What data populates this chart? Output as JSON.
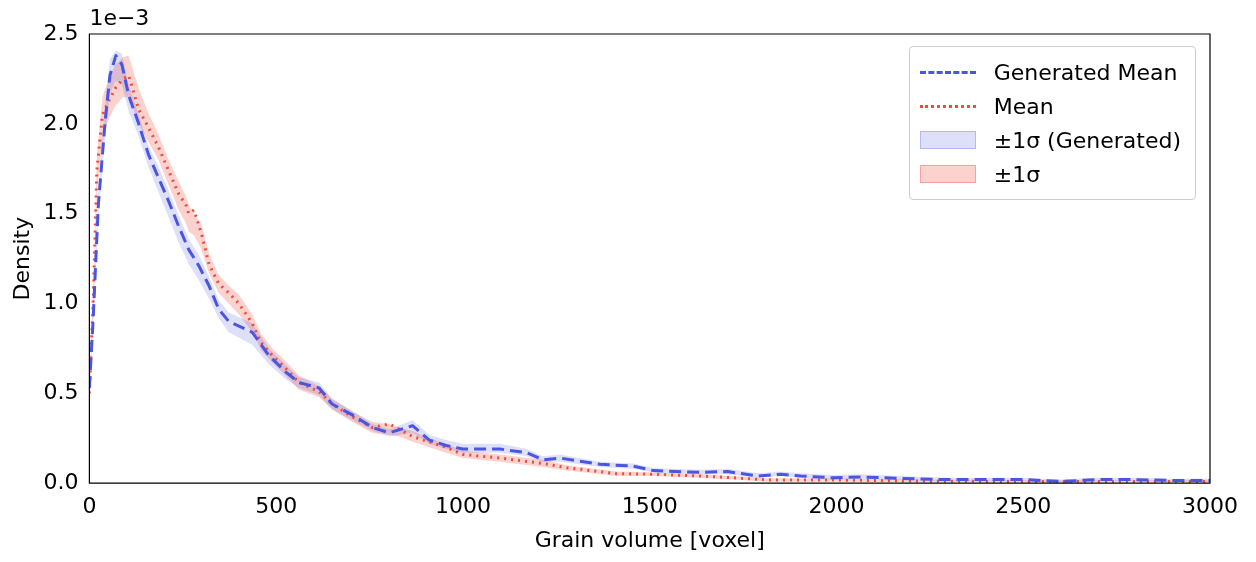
{
  "chart_data": {
    "type": "line",
    "xlabel": "Grain volume [voxel]",
    "ylabel": "Density",
    "annotations": [
      "1e−3",
      "±1σ (Generated)",
      "±1σ"
    ],
    "xlim": [
      0,
      3000
    ],
    "xticks": [
      0,
      500,
      1000,
      1500,
      2000,
      2500,
      3000
    ],
    "ylim": [
      0,
      2.5
    ],
    "yticks": [
      {
        "value": 0,
        "label": "0.0"
      },
      0.5,
      {
        "value": 1,
        "label": "1.0"
      },
      1.5,
      {
        "value": 2,
        "label": "2.0"
      },
      2.5
    ],
    "legend": "top right",
    "grid": false,
    "marker": "none",
    "series": [
      {
        "name": "Generated Mean",
        "color": "#4a55e0",
        "line_style": "dashed",
        "x": [
          0,
          10,
          24,
          42,
          55,
          71,
          87,
          105,
          132,
          158,
          185,
          212,
          239,
          266,
          293,
          320,
          346,
          373,
          436,
          481,
          525,
          561,
          615,
          650,
          704,
          758,
          803,
          865,
          910,
          955,
          1000,
          1099,
          1171,
          1214,
          1260,
          1367,
          1456,
          1510,
          1636,
          1708,
          1789,
          1851,
          1904,
          1993,
          2066,
          2173,
          2300,
          2400,
          2500,
          2600,
          2700,
          2800,
          2900,
          3000
        ],
        "values": [
          0.53,
          0.91,
          1.55,
          2.01,
          2.27,
          2.38,
          2.33,
          2.16,
          2.0,
          1.83,
          1.7,
          1.57,
          1.43,
          1.3,
          1.21,
          1.1,
          0.97,
          0.9,
          0.84,
          0.71,
          0.62,
          0.56,
          0.53,
          0.44,
          0.38,
          0.31,
          0.28,
          0.32,
          0.24,
          0.21,
          0.19,
          0.19,
          0.17,
          0.13,
          0.14,
          0.105,
          0.095,
          0.07,
          0.06,
          0.065,
          0.04,
          0.05,
          0.04,
          0.03,
          0.035,
          0.026,
          0.02,
          0.02,
          0.02,
          0.01,
          0.02,
          0.02,
          0.015,
          0.015
        ],
        "lower": [
          0.5,
          0.86,
          1.48,
          1.92,
          2.17,
          2.24,
          2.22,
          2.07,
          1.93,
          1.76,
          1.62,
          1.48,
          1.34,
          1.22,
          1.13,
          1.03,
          0.92,
          0.84,
          0.77,
          0.66,
          0.58,
          0.53,
          0.49,
          0.41,
          0.35,
          0.29,
          0.26,
          0.28,
          0.22,
          0.19,
          0.17,
          0.17,
          0.15,
          0.12,
          0.12,
          0.09,
          0.08,
          0.06,
          0.05,
          0.05,
          0.03,
          0.04,
          0.03,
          0.02,
          0.025,
          0.018,
          0.012,
          0.012,
          0.012,
          0.005,
          0.012,
          0.012,
          0.008,
          0.008
        ],
        "upper": [
          0.56,
          0.96,
          1.62,
          2.1,
          2.36,
          2.41,
          2.39,
          2.22,
          2.05,
          1.88,
          1.76,
          1.63,
          1.49,
          1.36,
          1.27,
          1.15,
          1.02,
          0.95,
          0.89,
          0.75,
          0.66,
          0.59,
          0.56,
          0.47,
          0.4,
          0.33,
          0.3,
          0.35,
          0.27,
          0.24,
          0.22,
          0.22,
          0.19,
          0.15,
          0.16,
          0.12,
          0.11,
          0.085,
          0.075,
          0.08,
          0.055,
          0.065,
          0.055,
          0.045,
          0.05,
          0.04,
          0.03,
          0.03,
          0.03,
          0.02,
          0.03,
          0.03,
          0.025,
          0.025
        ]
      },
      {
        "name": "Mean",
        "color": "#f04a3c",
        "line_style": "dotted",
        "x": [
          0,
          10,
          20,
          35,
          50,
          70,
          90,
          105,
          132,
          158,
          185,
          212,
          239,
          258,
          266,
          280,
          300,
          320,
          346,
          373,
          400,
          436,
          460,
          490,
          525,
          561,
          615,
          650,
          704,
          758,
          803,
          830,
          865,
          910,
          955,
          1000,
          1099,
          1214,
          1278,
          1412,
          1510,
          1636,
          1725,
          1815,
          1993,
          2200,
          2400,
          2600,
          2800,
          3000
        ],
        "values": [
          0.5,
          1.0,
          1.74,
          2.05,
          2.12,
          2.2,
          2.25,
          2.27,
          2.08,
          1.98,
          1.87,
          1.74,
          1.61,
          1.55,
          1.5,
          1.52,
          1.39,
          1.22,
          1.11,
          1.06,
          1.0,
          0.89,
          0.78,
          0.71,
          0.64,
          0.56,
          0.51,
          0.44,
          0.37,
          0.31,
          0.33,
          0.3,
          0.26,
          0.23,
          0.2,
          0.16,
          0.14,
          0.11,
          0.086,
          0.053,
          0.05,
          0.04,
          0.03,
          0.018,
          0.018,
          0.012,
          0.01,
          0.01,
          0.01,
          0.01
        ],
        "lower": [
          0.47,
          0.93,
          1.62,
          1.9,
          2.02,
          2.1,
          2.15,
          2.15,
          2.0,
          1.9,
          1.8,
          1.66,
          1.52,
          1.45,
          1.4,
          1.38,
          1.3,
          1.17,
          1.06,
          1.0,
          0.94,
          0.84,
          0.74,
          0.67,
          0.6,
          0.52,
          0.48,
          0.41,
          0.34,
          0.28,
          0.27,
          0.26,
          0.23,
          0.2,
          0.17,
          0.14,
          0.12,
          0.09,
          0.07,
          0.04,
          0.04,
          0.03,
          0.02,
          0.01,
          0.01,
          0.006,
          0.005,
          0.005,
          0.005,
          0.005
        ],
        "upper": [
          0.53,
          1.06,
          1.82,
          2.15,
          2.24,
          2.33,
          2.37,
          2.38,
          2.2,
          2.06,
          1.94,
          1.8,
          1.68,
          1.6,
          1.55,
          1.5,
          1.44,
          1.28,
          1.16,
          1.1,
          1.05,
          0.94,
          0.83,
          0.75,
          0.68,
          0.6,
          0.54,
          0.47,
          0.4,
          0.34,
          0.33,
          0.31,
          0.29,
          0.25,
          0.22,
          0.18,
          0.16,
          0.13,
          0.1,
          0.065,
          0.06,
          0.05,
          0.04,
          0.028,
          0.026,
          0.02,
          0.016,
          0.016,
          0.016,
          0.016
        ]
      }
    ]
  }
}
